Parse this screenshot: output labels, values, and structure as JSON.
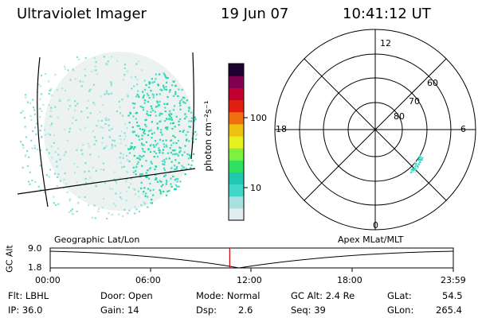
{
  "header": {
    "title": "Ultraviolet Imager",
    "date": "19 Jun 07",
    "time": "10:41:12 UT"
  },
  "colorbar": {
    "label": "photon cm⁻²s⁻¹",
    "ticks": [
      "100",
      "10"
    ],
    "scale": "log",
    "colors": [
      "#e0eef0",
      "#a8e0e0",
      "#40d8c8",
      "#20c8b0",
      "#30e060",
      "#80f040",
      "#e8f020",
      "#f0c010",
      "#f07010",
      "#e02010",
      "#c00030",
      "#800050",
      "#200030"
    ]
  },
  "polar": {
    "mlt_labels": [
      "12",
      "18",
      "6",
      "0"
    ],
    "mlat_labels": [
      "60",
      "70",
      "80"
    ]
  },
  "orbit": {
    "gc_alt_label": "GC Alt",
    "y_ticks": [
      "9.0",
      "1.8"
    ],
    "left_title": "Geographic Lat/Lon",
    "right_title": "Apex  MLat/MLT",
    "x_ticks": [
      "00:00",
      "06:00",
      "12:00",
      "18:00",
      "23:59"
    ],
    "current_time_fraction": 0.4453
  },
  "status": {
    "flt": "Flt: LBHL",
    "ip": "IP: 36.0",
    "door": "Door: Open",
    "gain": "Gain: 14",
    "mode": "Mode: Normal",
    "dsp": "Dsp:",
    "dsp_value": "2.6",
    "gc_alt": "GC Alt: 2.4 Re",
    "seq": "Seq: 39",
    "glat": "GLat:",
    "glat_value": "54.5",
    "glon": "GLon:",
    "glon_value": "265.4"
  },
  "accent_colors": {
    "aurora_high": "#20d8a0",
    "aurora_low": "#a8e8e0",
    "marker": "#cc0000"
  }
}
